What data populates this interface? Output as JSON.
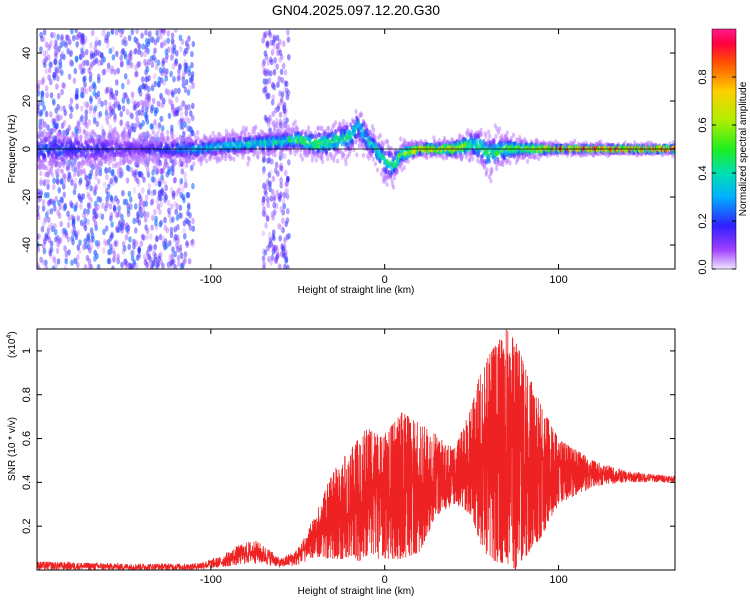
{
  "title": "GN04.2025.097.12.20.G30",
  "chart_data": [
    {
      "type": "heatmap",
      "title": "GN04.2025.097.12.20.G30",
      "xlabel": "Height of straight line (km)",
      "ylabel": "Frequency (Hz)",
      "xlim": [
        -200,
        167
      ],
      "ylim": [
        -50,
        50
      ],
      "x_ticks": [
        -100,
        0,
        100
      ],
      "y_ticks": [
        -40,
        -20,
        0,
        20,
        40
      ],
      "grid": false,
      "colorbar": {
        "label": "Normalized spectral amplitude",
        "range": [
          0,
          1
        ],
        "ticks": [
          "0.0",
          "0.2",
          "0.4",
          "0.6",
          "0.8"
        ]
      },
      "reference_line": {
        "y": 0,
        "color": "#000000"
      },
      "ridge": {
        "x": [
          -200,
          -170,
          -140,
          -110,
          -80,
          -60,
          -50,
          -40,
          -30,
          -20,
          -15,
          -10,
          -5,
          0,
          5,
          10,
          20,
          30,
          40,
          50,
          55,
          60,
          70,
          80,
          90,
          100,
          120,
          140,
          167
        ],
        "center": [
          0,
          0,
          0,
          0,
          2,
          3,
          4,
          2,
          3,
          5,
          10,
          4,
          0,
          -5,
          -7,
          -2,
          0,
          0,
          0,
          2,
          1,
          -2,
          0,
          0,
          0,
          0,
          0,
          0,
          0
        ],
        "width": [
          10,
          8,
          6,
          5,
          5,
          5,
          5,
          6,
          7,
          8,
          9,
          7,
          6,
          8,
          7,
          5,
          3,
          3,
          4,
          6,
          8,
          8,
          6,
          4,
          3,
          2,
          2,
          2,
          2
        ],
        "peak_amplitude": [
          0.25,
          0.2,
          0.15,
          0.35,
          0.4,
          0.45,
          0.55,
          0.55,
          0.5,
          0.45,
          0.35,
          0.4,
          0.45,
          0.45,
          0.5,
          0.6,
          0.8,
          0.85,
          0.8,
          0.5,
          0.45,
          0.5,
          0.55,
          0.6,
          0.75,
          0.9,
          0.95,
          0.95,
          0.95
        ]
      },
      "noise_regions": [
        {
          "x_range": [
            -200,
            -110
          ],
          "amplitude": 0.25
        },
        {
          "x_range": [
            -70,
            -55
          ],
          "amplitude": 0.2
        }
      ]
    },
    {
      "type": "line",
      "xlabel": "Height of straight line (km)",
      "ylabel": "SNR (10 * v/v)",
      "scale_label": "(x10",
      "scale_exponent": "4",
      "scale_suffix": ")",
      "xlim": [
        -200,
        167
      ],
      "ylim": [
        0,
        1.1
      ],
      "x_ticks": [
        -100,
        0,
        100
      ],
      "y_ticks": [
        "0.2",
        "0.4",
        "0.6",
        "0.8",
        "1"
      ],
      "grid": false,
      "series": [
        {
          "color": "#ee2222",
          "envelope": {
            "x": [
              -200,
              -150,
              -110,
              -95,
              -85,
              -75,
              -65,
              -60,
              -50,
              -40,
              -30,
              -20,
              -15,
              -10,
              -5,
              0,
              10,
              20,
              30,
              40,
              50,
              55,
              60,
              70,
              75,
              80,
              90,
              100,
              120,
              140,
              167
            ],
            "lower": [
              0.0,
              0.0,
              0.0,
              0.01,
              0.02,
              0.03,
              0.02,
              0.01,
              0.02,
              0.06,
              0.05,
              0.05,
              0.04,
              0.05,
              0.05,
              0.05,
              0.05,
              0.08,
              0.25,
              0.3,
              0.25,
              0.12,
              0.05,
              0.02,
              0.0,
              0.05,
              0.15,
              0.3,
              0.38,
              0.4,
              0.4
            ],
            "upper": [
              0.04,
              0.03,
              0.03,
              0.06,
              0.11,
              0.14,
              0.09,
              0.05,
              0.1,
              0.25,
              0.45,
              0.55,
              0.6,
              0.65,
              0.62,
              0.62,
              0.72,
              0.67,
              0.62,
              0.55,
              0.75,
              0.9,
              0.98,
              1.1,
              1.05,
              0.95,
              0.75,
              0.6,
              0.5,
              0.45,
              0.43
            ]
          }
        }
      ]
    }
  ]
}
